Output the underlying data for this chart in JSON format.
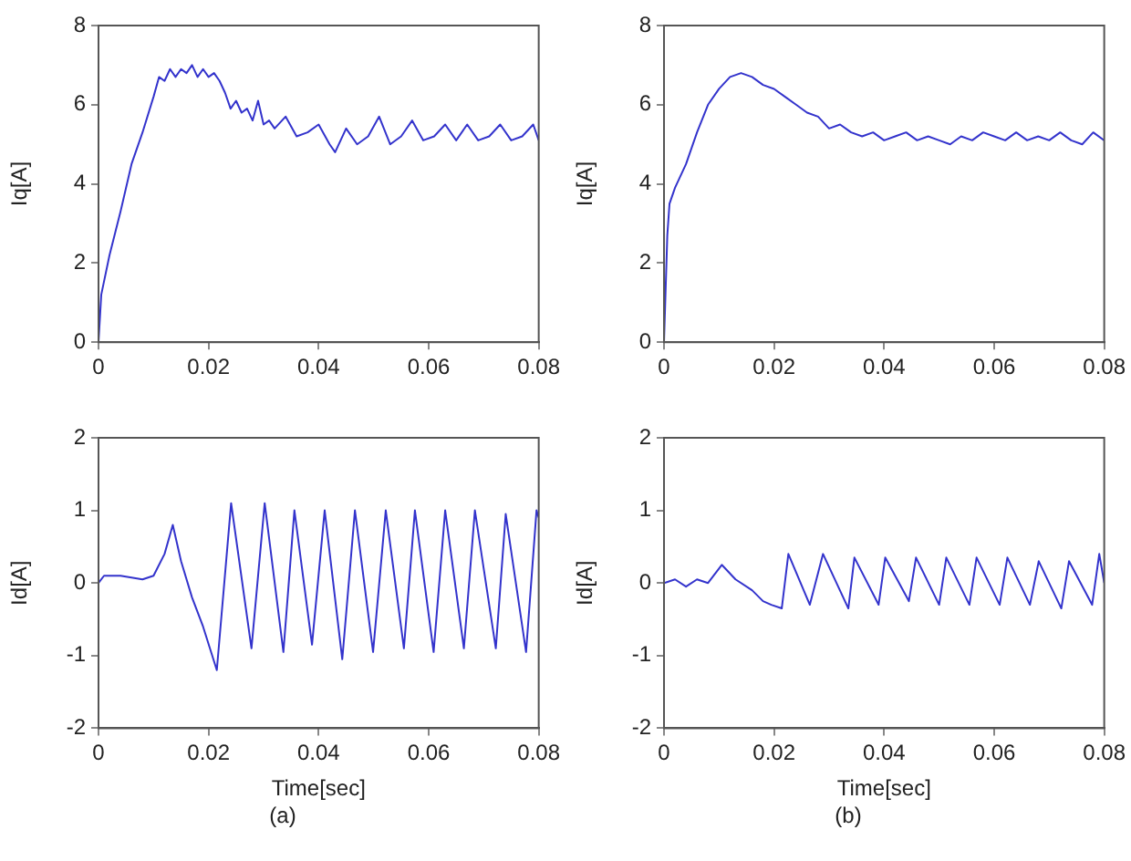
{
  "chart_data": [
    {
      "type": "line",
      "ylabel": "Iq[A]",
      "xlim": [
        0,
        0.08
      ],
      "xticks": [
        0,
        0.02,
        0.04,
        0.06,
        0.08
      ],
      "ylim": [
        0,
        8
      ],
      "yticks": [
        0,
        2,
        4,
        6,
        8
      ],
      "grid": false,
      "legend": false,
      "marker": "none",
      "color": "#3333cc",
      "x": [
        0,
        0.0005,
        0.002,
        0.004,
        0.006,
        0.008,
        0.01,
        0.011,
        0.012,
        0.013,
        0.014,
        0.015,
        0.016,
        0.017,
        0.018,
        0.019,
        0.02,
        0.021,
        0.022,
        0.023,
        0.024,
        0.025,
        0.026,
        0.027,
        0.028,
        0.029,
        0.03,
        0.031,
        0.032,
        0.034,
        0.036,
        0.038,
        0.04,
        0.042,
        0.043,
        0.045,
        0.047,
        0.049,
        0.051,
        0.053,
        0.055,
        0.057,
        0.059,
        0.061,
        0.063,
        0.065,
        0.067,
        0.069,
        0.071,
        0.073,
        0.075,
        0.077,
        0.079,
        0.08
      ],
      "values": [
        0,
        1.2,
        2.2,
        3.3,
        4.5,
        5.3,
        6.2,
        6.7,
        6.6,
        6.9,
        6.7,
        6.9,
        6.8,
        7.0,
        6.7,
        6.9,
        6.7,
        6.8,
        6.6,
        6.3,
        5.9,
        6.1,
        5.8,
        5.9,
        5.6,
        6.1,
        5.5,
        5.6,
        5.4,
        5.7,
        5.2,
        5.3,
        5.5,
        5.0,
        4.8,
        5.4,
        5.0,
        5.2,
        5.7,
        5.0,
        5.2,
        5.6,
        5.1,
        5.2,
        5.5,
        5.1,
        5.5,
        5.1,
        5.2,
        5.5,
        5.1,
        5.2,
        5.5,
        5.1
      ]
    },
    {
      "type": "line",
      "ylabel": "Iq[A]",
      "xlim": [
        0,
        0.08
      ],
      "xticks": [
        0,
        0.02,
        0.04,
        0.06,
        0.08
      ],
      "ylim": [
        0,
        8
      ],
      "yticks": [
        0,
        2,
        4,
        6,
        8
      ],
      "grid": false,
      "legend": false,
      "marker": "none",
      "color": "#3333cc",
      "x": [
        0,
        0.0003,
        0.0006,
        0.001,
        0.002,
        0.004,
        0.006,
        0.008,
        0.01,
        0.012,
        0.014,
        0.016,
        0.018,
        0.02,
        0.022,
        0.024,
        0.026,
        0.028,
        0.03,
        0.032,
        0.034,
        0.036,
        0.038,
        0.04,
        0.042,
        0.044,
        0.046,
        0.048,
        0.05,
        0.052,
        0.054,
        0.056,
        0.058,
        0.06,
        0.062,
        0.064,
        0.066,
        0.068,
        0.07,
        0.072,
        0.074,
        0.076,
        0.078,
        0.08
      ],
      "values": [
        0,
        0,
        2.7,
        3.5,
        3.9,
        4.5,
        5.3,
        6.0,
        6.4,
        6.7,
        6.8,
        6.7,
        6.5,
        6.4,
        6.2,
        6.0,
        5.8,
        5.7,
        5.4,
        5.5,
        5.3,
        5.2,
        5.3,
        5.1,
        5.2,
        5.3,
        5.1,
        5.2,
        5.1,
        5.0,
        5.2,
        5.1,
        5.3,
        5.2,
        5.1,
        5.3,
        5.1,
        5.2,
        5.1,
        5.3,
        5.1,
        5.0,
        5.3,
        5.1
      ]
    },
    {
      "type": "line",
      "xlabel": "Time[sec]",
      "ylabel": "Id[A]",
      "annotations": [
        "(a)"
      ],
      "xlim": [
        0,
        0.08
      ],
      "xticks": [
        0,
        0.02,
        0.04,
        0.06,
        0.08
      ],
      "ylim": [
        -2,
        2
      ],
      "yticks": [
        -2,
        -1,
        0,
        1,
        2
      ],
      "grid": false,
      "legend": false,
      "marker": "none",
      "color": "#3333cc",
      "x": [
        0,
        0.001,
        0.004,
        0.008,
        0.01,
        0.012,
        0.0135,
        0.015,
        0.017,
        0.019,
        0.0215,
        0.0241,
        0.0278,
        0.0302,
        0.0336,
        0.0356,
        0.0388,
        0.0411,
        0.0443,
        0.0466,
        0.0499,
        0.0522,
        0.0555,
        0.0575,
        0.0609,
        0.063,
        0.0664,
        0.0684,
        0.0722,
        0.074,
        0.0777,
        0.0796,
        0.08
      ],
      "values": [
        0,
        0.1,
        0.1,
        0.05,
        0.1,
        0.4,
        0.8,
        0.3,
        -0.2,
        -0.6,
        -1.2,
        1.1,
        -0.9,
        1.1,
        -0.95,
        1.0,
        -0.85,
        1.0,
        -1.05,
        1.0,
        -0.95,
        1.0,
        -0.9,
        1.0,
        -0.95,
        1.0,
        -0.9,
        1.0,
        -0.9,
        0.95,
        -0.95,
        1.0,
        0.9
      ]
    },
    {
      "type": "line",
      "xlabel": "Time[sec]",
      "ylabel": "Id[A]",
      "annotations": [
        "(b)"
      ],
      "xlim": [
        0,
        0.08
      ],
      "xticks": [
        0,
        0.02,
        0.04,
        0.06,
        0.08
      ],
      "ylim": [
        -2,
        2
      ],
      "yticks": [
        -2,
        -1,
        0,
        1,
        2
      ],
      "grid": false,
      "legend": false,
      "marker": "none",
      "color": "#3333cc",
      "x": [
        0,
        0.002,
        0.004,
        0.006,
        0.008,
        0.0105,
        0.013,
        0.016,
        0.018,
        0.0195,
        0.0214,
        0.0226,
        0.0265,
        0.0289,
        0.0335,
        0.0346,
        0.039,
        0.0402,
        0.0445,
        0.0458,
        0.05,
        0.0513,
        0.0555,
        0.0568,
        0.061,
        0.0624,
        0.0665,
        0.0681,
        0.0722,
        0.0736,
        0.0778,
        0.0791,
        0.08
      ],
      "values": [
        0,
        0.05,
        -0.05,
        0.05,
        0,
        0.25,
        0.05,
        -0.1,
        -0.25,
        -0.3,
        -0.35,
        0.4,
        -0.3,
        0.4,
        -0.35,
        0.35,
        -0.3,
        0.35,
        -0.25,
        0.35,
        -0.3,
        0.35,
        -0.3,
        0.35,
        -0.3,
        0.35,
        -0.3,
        0.3,
        -0.35,
        0.3,
        -0.3,
        0.4,
        0
      ]
    }
  ]
}
